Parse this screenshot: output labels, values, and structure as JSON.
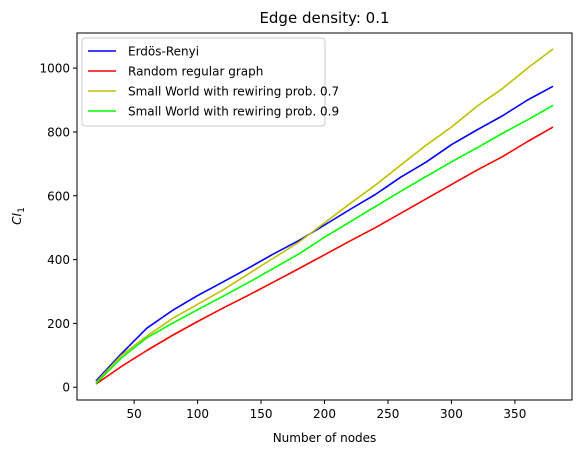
{
  "chart_data": {
    "type": "line",
    "title": "Edge density: 0.1",
    "xlabel": "Number of nodes",
    "ylabel": "CI",
    "ylabel_subscript": "1",
    "xlim": [
      5,
      395
    ],
    "ylim": [
      -40,
      1110
    ],
    "xticks": [
      50,
      100,
      150,
      200,
      250,
      300,
      350
    ],
    "yticks": [
      0,
      200,
      400,
      600,
      800,
      1000
    ],
    "legend_position": "upper-left",
    "x": [
      20,
      40,
      60,
      80,
      100,
      120,
      140,
      160,
      180,
      200,
      220,
      240,
      260,
      280,
      300,
      320,
      340,
      360,
      380
    ],
    "series": [
      {
        "name": "Erdös-Renyi",
        "color": "#0000ff",
        "values": [
          20,
          105,
          185,
          240,
          287,
          330,
          373,
          418,
          460,
          508,
          557,
          604,
          658,
          705,
          760,
          806,
          850,
          900,
          943
        ]
      },
      {
        "name": "Random regular graph",
        "color": "#ff0000",
        "values": [
          10,
          65,
          115,
          162,
          206,
          248,
          288,
          330,
          372,
          415,
          458,
          500,
          545,
          590,
          635,
          680,
          722,
          770,
          815
        ]
      },
      {
        "name": "Small World with rewiring prob. 0.7",
        "color": "#bfbf00",
        "values": [
          15,
          100,
          160,
          215,
          260,
          305,
          355,
          405,
          455,
          515,
          575,
          633,
          696,
          758,
          815,
          880,
          935,
          1000,
          1060
        ]
      },
      {
        "name": "Small World with rewiring prob. 0.9",
        "color": "#00ff00",
        "values": [
          12,
          92,
          155,
          200,
          243,
          285,
          328,
          373,
          418,
          470,
          518,
          566,
          614,
          660,
          706,
          750,
          795,
          838,
          883
        ]
      }
    ]
  }
}
